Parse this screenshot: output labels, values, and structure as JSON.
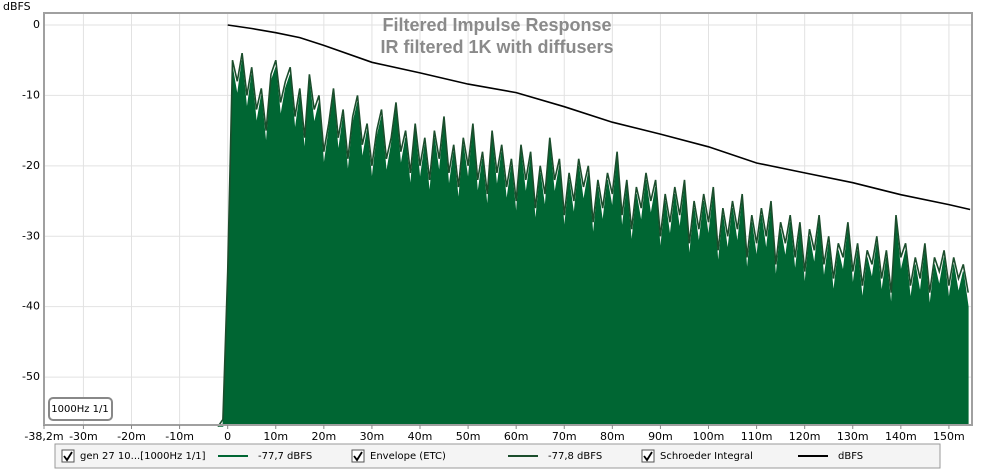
{
  "chart_data": {
    "type": "line",
    "title": "Filtered Impulse Response",
    "subtitle": "IR filtered 1K with diffusers",
    "ylabel": "dBFS",
    "filter_label": "1000Hz 1/1",
    "xlim": [
      -38.2,
      154.8
    ],
    "ylim": [
      -56.8,
      1.7
    ],
    "xticks": [
      {
        "value": -38.2,
        "label": "-38,2m"
      },
      {
        "value": -30,
        "label": "-30m"
      },
      {
        "value": -20,
        "label": "-20m"
      },
      {
        "value": -10,
        "label": "-10m"
      },
      0,
      {
        "value": 10,
        "label": "10m"
      },
      {
        "value": 20,
        "label": "20m"
      },
      {
        "value": 30,
        "label": "30m"
      },
      {
        "value": 40,
        "label": "40m"
      },
      {
        "value": 50,
        "label": "50m"
      },
      {
        "value": 60,
        "label": "60m"
      },
      {
        "value": 70,
        "label": "70m"
      },
      {
        "value": 80,
        "label": "80m"
      },
      {
        "value": 90,
        "label": "90m"
      },
      {
        "value": 100,
        "label": "100m"
      },
      {
        "value": 110,
        "label": "110m"
      },
      {
        "value": 120,
        "label": "120m"
      },
      {
        "value": 130,
        "label": "130m"
      },
      {
        "value": 140,
        "label": "140m"
      },
      {
        "value": 150,
        "label": "150m"
      }
    ],
    "yticks": [
      0,
      -10,
      -20,
      -30,
      -40,
      -50
    ],
    "grid": true,
    "x": [
      -2,
      -1,
      0,
      1,
      2,
      3,
      4,
      5,
      6,
      7,
      8,
      9,
      10,
      11,
      12,
      13,
      14,
      15,
      16,
      17,
      18,
      19,
      20,
      21,
      22,
      23,
      24,
      25,
      26,
      27,
      28,
      29,
      30,
      31,
      32,
      33,
      34,
      35,
      36,
      37,
      38,
      39,
      40,
      41,
      42,
      43,
      44,
      45,
      46,
      47,
      48,
      49,
      50,
      51,
      52,
      53,
      54,
      55,
      56,
      57,
      58,
      59,
      60,
      61,
      62,
      63,
      64,
      65,
      66,
      67,
      68,
      69,
      70,
      71,
      72,
      73,
      74,
      75,
      76,
      77,
      78,
      79,
      80,
      81,
      82,
      83,
      84,
      85,
      86,
      87,
      88,
      89,
      90,
      91,
      92,
      93,
      94,
      95,
      96,
      97,
      98,
      99,
      100,
      101,
      102,
      103,
      104,
      105,
      106,
      107,
      108,
      109,
      110,
      111,
      112,
      113,
      114,
      115,
      116,
      117,
      118,
      119,
      120,
      121,
      122,
      123,
      124,
      125,
      126,
      127,
      128,
      129,
      130,
      131,
      132,
      133,
      134,
      135,
      136,
      137,
      138,
      139,
      140,
      141,
      142,
      143,
      144,
      145,
      146,
      147,
      148,
      149,
      150,
      151,
      152,
      153,
      154
    ],
    "series": [
      {
        "name": "gen 27 10...[1000Hz 1/1]",
        "legend_value": "-77,7 dBFS",
        "color": "#006633",
        "style": "area",
        "values": [
          -57,
          -57,
          -37,
          -6,
          -10,
          -5,
          -12,
          -7,
          -14,
          -10,
          -17,
          -8,
          -6,
          -13,
          -9,
          -7,
          -15,
          -10,
          -18,
          -8,
          -14,
          -11,
          -20,
          -15,
          -10,
          -18,
          -13,
          -21,
          -14,
          -11,
          -19,
          -15,
          -22,
          -16,
          -13,
          -21,
          -17,
          -12,
          -20,
          -16,
          -23,
          -15,
          -22,
          -17,
          -24,
          -16,
          -21,
          -14,
          -23,
          -18,
          -25,
          -17,
          -22,
          -15,
          -24,
          -19,
          -26,
          -16,
          -23,
          -18,
          -25,
          -20,
          -27,
          -18,
          -24,
          -19,
          -28,
          -21,
          -26,
          -17,
          -24,
          -20,
          -29,
          -22,
          -27,
          -20,
          -25,
          -21,
          -30,
          -23,
          -28,
          -22,
          -26,
          -19,
          -29,
          -23,
          -31,
          -24,
          -28,
          -22,
          -27,
          -23,
          -32,
          -25,
          -30,
          -24,
          -29,
          -23,
          -33,
          -26,
          -31,
          -25,
          -30,
          -24,
          -34,
          -27,
          -32,
          -26,
          -31,
          -25,
          -35,
          -28,
          -33,
          -27,
          -32,
          -26,
          -36,
          -29,
          -33,
          -28,
          -35,
          -29,
          -37,
          -30,
          -34,
          -28,
          -36,
          -31,
          -38,
          -32,
          -35,
          -29,
          -37,
          -32,
          -39,
          -33,
          -36,
          -31,
          -38,
          -33,
          -40,
          -28,
          -35,
          -32,
          -39,
          -34,
          -38,
          -32,
          -40,
          -34,
          -37,
          -33,
          -39,
          -34,
          -38,
          -35,
          -40
        ]
      },
      {
        "name": "Envelope (ETC)",
        "legend_value": "-77,8 dBFS",
        "color": "#1b4d2c",
        "style": "line",
        "values": [
          -57,
          -56,
          -35,
          -5,
          -8,
          -4,
          -10,
          -6,
          -12,
          -9,
          -15,
          -7,
          -5,
          -11,
          -8,
          -6,
          -13,
          -9,
          -16,
          -7,
          -12,
          -10,
          -18,
          -14,
          -9,
          -16,
          -12,
          -19,
          -13,
          -10,
          -17,
          -14,
          -20,
          -15,
          -12,
          -19,
          -16,
          -11,
          -18,
          -15,
          -21,
          -14,
          -20,
          -16,
          -22,
          -15,
          -19,
          -13,
          -21,
          -17,
          -23,
          -16,
          -20,
          -14,
          -22,
          -18,
          -24,
          -15,
          -21,
          -17,
          -23,
          -19,
          -25,
          -17,
          -22,
          -18,
          -26,
          -20,
          -24,
          -16,
          -22,
          -19,
          -27,
          -21,
          -25,
          -19,
          -23,
          -20,
          -28,
          -22,
          -26,
          -21,
          -24,
          -18,
          -27,
          -22,
          -29,
          -23,
          -26,
          -21,
          -25,
          -22,
          -30,
          -24,
          -28,
          -23,
          -27,
          -22,
          -31,
          -25,
          -29,
          -24,
          -28,
          -23,
          -32,
          -26,
          -30,
          -25,
          -29,
          -24,
          -33,
          -27,
          -31,
          -26,
          -30,
          -25,
          -34,
          -28,
          -31,
          -27,
          -33,
          -28,
          -35,
          -29,
          -32,
          -27,
          -34,
          -30,
          -36,
          -31,
          -33,
          -28,
          -35,
          -31,
          -37,
          -32,
          -34,
          -30,
          -36,
          -32,
          -38,
          -27,
          -33,
          -31,
          -37,
          -33,
          -36,
          -31,
          -38,
          -33,
          -35,
          -32,
          -37,
          -33,
          -36,
          -34,
          -38
        ]
      },
      {
        "name": "Schroeder Integral",
        "legend_value": "dBFS",
        "color": "#000000",
        "style": "line",
        "x": [
          0,
          5,
          10,
          15,
          20,
          30,
          40,
          50,
          60,
          70,
          80,
          90,
          100,
          110,
          120,
          130,
          140,
          150,
          154.4
        ],
        "values": [
          0,
          -0.5,
          -1.1,
          -1.8,
          -2.9,
          -5.3,
          -6.8,
          -8.4,
          -9.6,
          -11.6,
          -13.8,
          -15.5,
          -17.3,
          -19.6,
          -21.0,
          -22.4,
          -24.1,
          -25.5,
          -26.2
        ]
      }
    ]
  }
}
